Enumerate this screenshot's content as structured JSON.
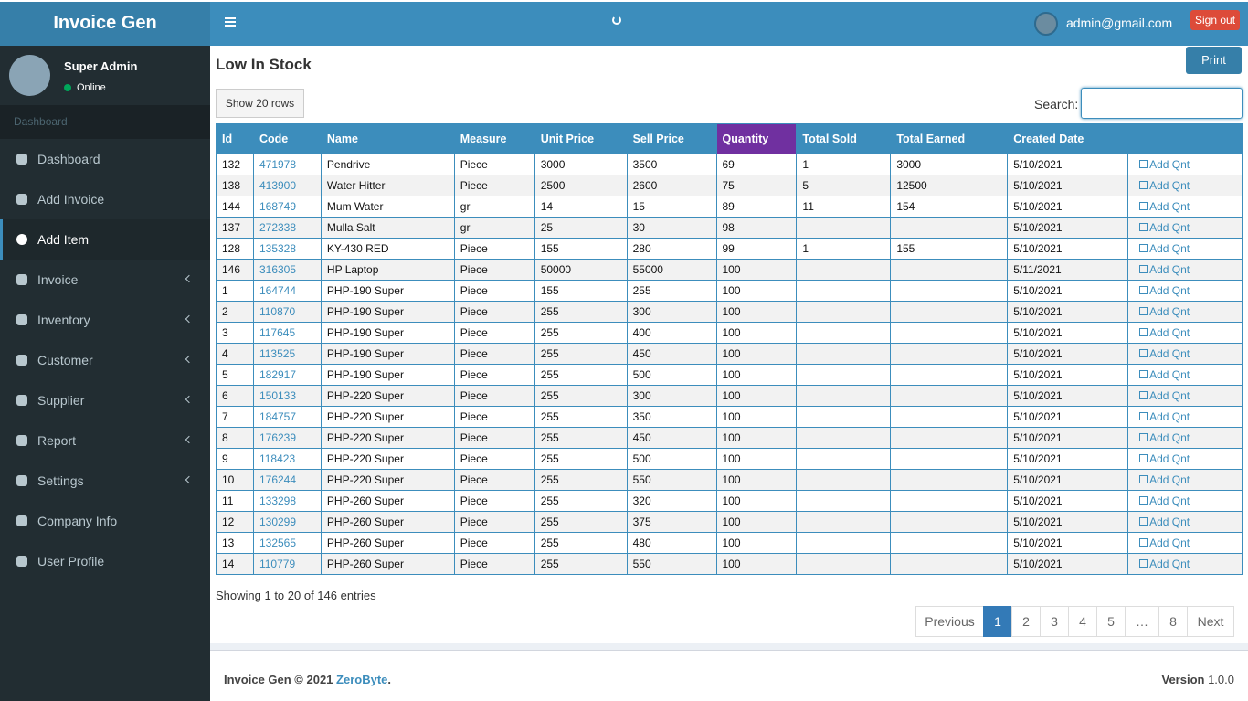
{
  "header": {
    "brand": "Invoice Gen",
    "user": "admin@gmail.com",
    "signout": "Sign out"
  },
  "sidebar": {
    "user_name": "Super Admin",
    "status": "Online",
    "section": "Dashboard",
    "menu": [
      {
        "label": "Dashboard",
        "sub": false
      },
      {
        "label": "Add Invoice",
        "sub": false
      },
      {
        "label": "Add Item",
        "sub": false,
        "active": true
      },
      {
        "label": "Invoice",
        "sub": true
      },
      {
        "label": "Inventory",
        "sub": true
      },
      {
        "label": "Customer",
        "sub": true
      },
      {
        "label": "Supplier",
        "sub": true
      },
      {
        "label": "Report",
        "sub": true
      },
      {
        "label": "Settings",
        "sub": true
      },
      {
        "label": "Company Info",
        "sub": false
      },
      {
        "label": "User Profile",
        "sub": false
      }
    ]
  },
  "content": {
    "title": "Low In Stock",
    "print": "Print",
    "show_rows": "Show 20 rows",
    "search_label": "Search:"
  },
  "table": {
    "columns": [
      "Id",
      "Code",
      "Name",
      "Measure",
      "Unit Price",
      "Sell Price",
      "Quantity",
      "Total Sold",
      "Total Earned",
      "Created Date"
    ],
    "action": "Add Qnt",
    "rows": [
      [
        "132",
        "471978",
        "Pendrive",
        "Piece",
        "3000",
        "3500",
        "69",
        "1",
        "3000",
        "5/10/2021"
      ],
      [
        "138",
        "413900",
        "Water Hitter",
        "Piece",
        "2500",
        "2600",
        "75",
        "5",
        "12500",
        "5/10/2021"
      ],
      [
        "144",
        "168749",
        "Mum Water",
        "gr",
        "14",
        "15",
        "89",
        "11",
        "154",
        "5/10/2021"
      ],
      [
        "137",
        "272338",
        "Mulla Salt",
        "gr",
        "25",
        "30",
        "98",
        null,
        null,
        "5/10/2021"
      ],
      [
        "128",
        "135328",
        "KY-430 RED",
        "Piece",
        "155",
        "280",
        "99",
        "1",
        "155",
        "5/10/2021"
      ],
      [
        "146",
        "316305",
        "HP Laptop",
        "Piece",
        "50000",
        "55000",
        "100",
        null,
        null,
        "5/11/2021"
      ],
      [
        "1",
        "164744",
        "PHP-190 Super",
        "Piece",
        "155",
        "255",
        "100",
        null,
        null,
        "5/10/2021"
      ],
      [
        "2",
        "110870",
        "PHP-190 Super",
        "Piece",
        "255",
        "300",
        "100",
        null,
        null,
        "5/10/2021"
      ],
      [
        "3",
        "117645",
        "PHP-190 Super",
        "Piece",
        "255",
        "400",
        "100",
        null,
        null,
        "5/10/2021"
      ],
      [
        "4",
        "113525",
        "PHP-190 Super",
        "Piece",
        "255",
        "450",
        "100",
        null,
        null,
        "5/10/2021"
      ],
      [
        "5",
        "182917",
        "PHP-190 Super",
        "Piece",
        "255",
        "500",
        "100",
        null,
        null,
        "5/10/2021"
      ],
      [
        "6",
        "150133",
        "PHP-220 Super",
        "Piece",
        "255",
        "300",
        "100",
        null,
        null,
        "5/10/2021"
      ],
      [
        "7",
        "184757",
        "PHP-220 Super",
        "Piece",
        "255",
        "350",
        "100",
        null,
        null,
        "5/10/2021"
      ],
      [
        "8",
        "176239",
        "PHP-220 Super",
        "Piece",
        "255",
        "450",
        "100",
        null,
        null,
        "5/10/2021"
      ],
      [
        "9",
        "118423",
        "PHP-220 Super",
        "Piece",
        "255",
        "500",
        "100",
        null,
        null,
        "5/10/2021"
      ],
      [
        "10",
        "176244",
        "PHP-220 Super",
        "Piece",
        "255",
        "550",
        "100",
        null,
        null,
        "5/10/2021"
      ],
      [
        "11",
        "133298",
        "PHP-260 Super",
        "Piece",
        "255",
        "320",
        "100",
        null,
        null,
        "5/10/2021"
      ],
      [
        "12",
        "130299",
        "PHP-260 Super",
        "Piece",
        "255",
        "375",
        "100",
        null,
        null,
        "5/10/2021"
      ],
      [
        "13",
        "132565",
        "PHP-260 Super",
        "Piece",
        "255",
        "480",
        "100",
        null,
        null,
        "5/10/2021"
      ],
      [
        "14",
        "110779",
        "PHP-260 Super",
        "Piece",
        "255",
        "550",
        "100",
        null,
        null,
        "5/10/2021"
      ]
    ]
  },
  "info": "Showing 1 to 20 of 146 entries",
  "pagination": [
    "Previous",
    "1",
    "2",
    "3",
    "4",
    "5",
    "…",
    "8",
    "Next"
  ],
  "footer": {
    "brand": "Invoice Gen © 2021",
    "company": "ZeroByte",
    "end": ".",
    "version_label": "Version",
    "version": "1.0.0"
  }
}
